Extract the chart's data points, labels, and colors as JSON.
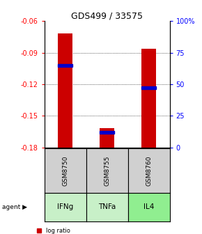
{
  "title": "GDS499 / 33575",
  "samples": [
    "GSM8750",
    "GSM8755",
    "GSM8760"
  ],
  "agents": [
    "IFNg",
    "TNFa",
    "IL4"
  ],
  "log_ratios": [
    -0.072,
    -0.162,
    -0.086
  ],
  "percentiles": [
    65,
    12,
    47
  ],
  "ylim_left": [
    -0.18,
    -0.06
  ],
  "ylim_right": [
    0,
    100
  ],
  "y_ticks_left": [
    -0.18,
    -0.15,
    -0.12,
    -0.09,
    -0.06
  ],
  "y_ticks_right": [
    0,
    25,
    50,
    75,
    100
  ],
  "bar_color": "#cc0000",
  "percentile_color": "#0000cc",
  "agent_colors": {
    "IFNg": "#c8f0c8",
    "TNFa": "#c8f0c8",
    "IL4": "#90ee90"
  },
  "sample_bg": "#d0d0d0",
  "bar_width": 0.35,
  "title_fontsize": 9,
  "tick_fontsize": 7,
  "legend_fontsize": 6,
  "agent_fontsize": 7.5,
  "sample_fontsize": 6.5
}
